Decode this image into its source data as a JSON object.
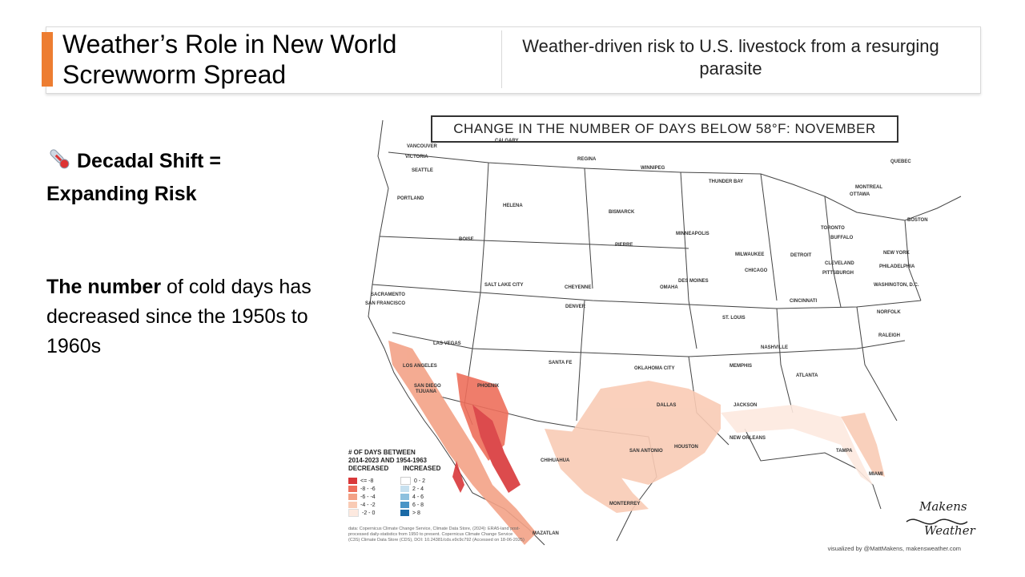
{
  "header": {
    "title": "Weather’s Role in New World Screwworm Spread",
    "subtitle": "Weather-driven risk to U.S. livestock from a resurging parasite"
  },
  "left_panel": {
    "heading": "Decadal Shift = Expanding Risk",
    "heading_icon": "thermometer-icon",
    "body_bold": "The number",
    "body_rest": " of cold days has decreased since the 1950s to 1960s"
  },
  "map": {
    "title": "CHANGE IN THE NUMBER OF DAYS BELOW 58°F: NOVEMBER",
    "cities": [
      "VANCOUVER",
      "VICTORIA",
      "SEATTLE",
      "PORTLAND",
      "CALGARY",
      "REGINA",
      "WINNIPEG",
      "HELENA",
      "BOISE",
      "BISMARCK",
      "PIERRE",
      "THUNDER BAY",
      "QUEBEC",
      "MONTREAL",
      "OTTAWA",
      "BOSTON",
      "TORONTO",
      "BUFFALO",
      "NEW YORK",
      "MINNEAPOLIS",
      "MILWAUKEE",
      "DETROIT",
      "CLEVELAND",
      "PHILADELPHIA",
      "PITTSBURGH",
      "WASHINGTON, D.C.",
      "CHICAGO",
      "DES MOINES",
      "OMAHA",
      "SALT LAKE CITY",
      "CHEYENNE",
      "DENVER",
      "SACRAMENTO",
      "SAN FRANCISCO",
      "CINCINNATI",
      "NORFOLK",
      "ST. LOUIS",
      "LAS VEGAS",
      "LOS ANGELES",
      "SAN DIEGO",
      "TIJUANA",
      "PHOENIX",
      "SANTA FE",
      "OKLAHOMA CITY",
      "NASHVILLE",
      "RALEIGH",
      "MEMPHIS",
      "ATLANTA",
      "DALLAS",
      "JACKSON",
      "NEW ORLEANS",
      "HOUSTON",
      "SAN ANTONIO",
      "CHIHUAHUA",
      "TAMPA",
      "MIAMI",
      "MONTERREY",
      "MAZATLAN"
    ],
    "legend": {
      "title_line1": "# OF DAYS BETWEEN",
      "title_line2": "2014-2023 AND 1954-1963",
      "decreased_label": "DECREASED",
      "increased_label": "INCREASED",
      "decreased": [
        {
          "label": "<= -8",
          "color": "#d9383a"
        },
        {
          "label": "-8 - -6",
          "color": "#ee6f5c"
        },
        {
          "label": "-6 - -4",
          "color": "#f3a287"
        },
        {
          "label": "-4 - -2",
          "color": "#f9cbb5"
        },
        {
          "label": "-2 - 0",
          "color": "#fde9df"
        }
      ],
      "increased": [
        {
          "label": "0 - 2",
          "color": "#ffffff"
        },
        {
          "label": "2 - 4",
          "color": "#c6e0ef"
        },
        {
          "label": "4 - 6",
          "color": "#8cc0de"
        },
        {
          "label": "6 - 8",
          "color": "#4a95c6"
        },
        {
          "label": "> 8",
          "color": "#1b6aa6"
        }
      ]
    },
    "credit": "data: Copernicus Climate Change Service, Climate Data Store, (2024): ERA5-land post-processed daily-statistics from 1950 to present. Copernicus Climate Change Service (C3S) Climate Data Store (CDS), DOI: 10.24381/cds.e9c9c792 (Accessed on 18-06-2025)",
    "visualized_by": "visualized by @MattMakens, makensweather.com",
    "logo_top": "Makens",
    "logo_bottom": "Weather"
  },
  "colors": {
    "accent": "#ed7d31"
  }
}
